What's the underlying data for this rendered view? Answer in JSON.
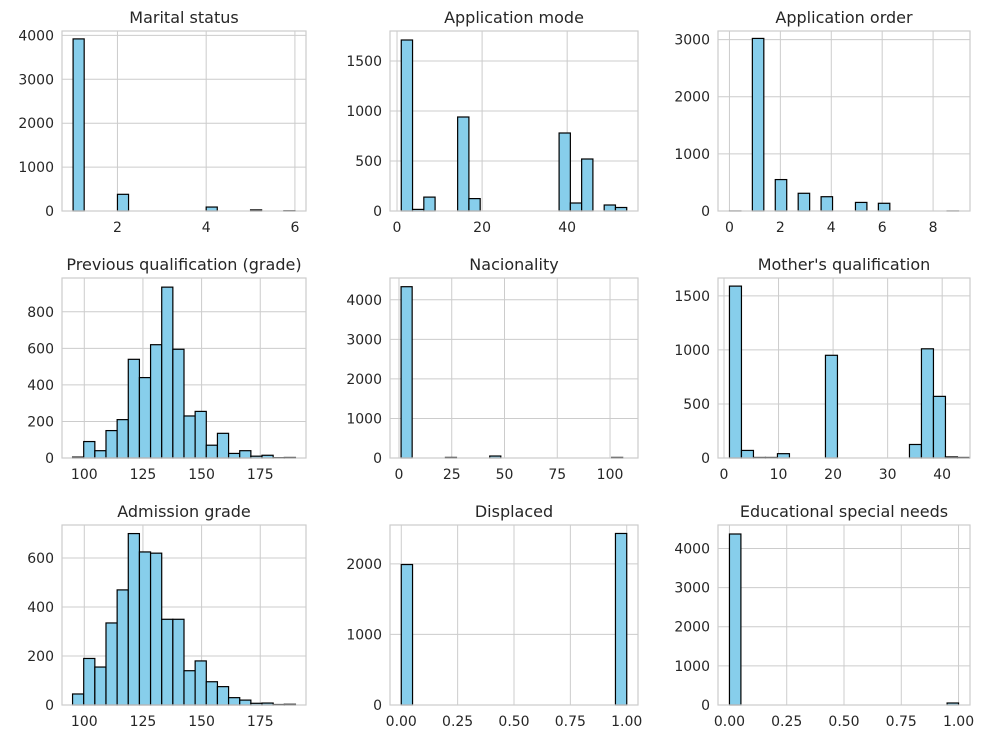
{
  "style": {
    "bar_color": "#87ceeb",
    "edge_color": "#000000",
    "grid_color": "#cccccc",
    "text_color": "#262626"
  },
  "chart_data": [
    {
      "type": "bar",
      "title": "Marital status",
      "grid": true,
      "xlim": [
        0.75,
        6.25
      ],
      "ylim": [
        0,
        4100
      ],
      "xticks": [
        2,
        4,
        6
      ],
      "yticks": [
        0,
        1000,
        2000,
        3000,
        4000
      ],
      "bin_start": 1,
      "bin_width": 0.25,
      "values": [
        3920,
        0,
        0,
        0,
        380,
        0,
        0,
        0,
        0,
        0,
        0,
        0,
        90,
        0,
        0,
        0,
        25,
        0,
        0,
        6
      ]
    },
    {
      "type": "bar",
      "title": "Application mode",
      "grid": true,
      "xlim": [
        -1.65,
        56.65
      ],
      "ylim": [
        0,
        1800
      ],
      "xticks": [
        0,
        20,
        40
      ],
      "yticks": [
        0,
        500,
        1000,
        1500
      ],
      "bin_start": 1,
      "bin_width": 2.65,
      "values": [
        1710,
        16,
        139,
        0,
        0,
        940,
        124,
        0,
        0,
        0,
        0,
        0,
        0,
        0,
        780,
        80,
        520,
        0,
        60,
        35
      ]
    },
    {
      "type": "bar",
      "title": "Application order",
      "grid": true,
      "xlim": [
        -0.45,
        9.45
      ],
      "ylim": [
        0,
        3150
      ],
      "xticks": [
        0,
        2,
        4,
        6,
        8
      ],
      "yticks": [
        0,
        1000,
        2000,
        3000
      ],
      "bin_start": 0,
      "bin_width": 0.45,
      "values": [
        1,
        0,
        3020,
        0,
        550,
        0,
        310,
        0,
        250,
        0,
        0,
        150,
        0,
        135,
        0,
        0,
        0,
        0,
        0,
        1
      ]
    },
    {
      "type": "bar",
      "title": "Previous qualification (grade)",
      "grid": true,
      "xlim": [
        90.5,
        194.5
      ],
      "ylim": [
        0,
        985
      ],
      "xticks": [
        100,
        125,
        150,
        175
      ],
      "yticks": [
        0,
        200,
        400,
        600,
        800
      ],
      "bin_start": 95,
      "bin_width": 4.75,
      "values": [
        5,
        90,
        40,
        150,
        210,
        540,
        440,
        620,
        935,
        595,
        230,
        255,
        70,
        135,
        25,
        40,
        10,
        15,
        2,
        3
      ]
    },
    {
      "type": "bar",
      "title": "Nacionality",
      "grid": true,
      "xlim": [
        -4.25,
        113.25
      ],
      "ylim": [
        0,
        4550
      ],
      "xticks": [
        0,
        25,
        50,
        75,
        100
      ],
      "yticks": [
        0,
        1000,
        2000,
        3000,
        4000
      ],
      "bin_start": 1,
      "bin_width": 5.25,
      "values": [
        4330,
        0,
        0,
        0,
        15,
        0,
        0,
        0,
        50,
        0,
        0,
        0,
        0,
        0,
        0,
        0,
        0,
        0,
        0,
        15
      ]
    },
    {
      "type": "bar",
      "title": "Mother's qualification",
      "grid": true,
      "xlim": [
        -1.1,
        45.1
      ],
      "ylim": [
        0,
        1665
      ],
      "xticks": [
        0,
        10,
        20,
        30,
        40
      ],
      "yticks": [
        0,
        500,
        1000,
        1500
      ],
      "bin_start": 1,
      "bin_width": 2.2,
      "values": [
        1590,
        70,
        5,
        5,
        40,
        0,
        0,
        0,
        950,
        0,
        0,
        0,
        0,
        0,
        0,
        125,
        1010,
        570,
        10,
        5
      ]
    },
    {
      "type": "bar",
      "title": "Admission grade",
      "grid": true,
      "xlim": [
        90.5,
        194.5
      ],
      "ylim": [
        0,
        735
      ],
      "xticks": [
        100,
        125,
        150,
        175
      ],
      "yticks": [
        0,
        200,
        400,
        600
      ],
      "bin_start": 95,
      "bin_width": 4.75,
      "values": [
        45,
        190,
        155,
        335,
        470,
        700,
        625,
        620,
        350,
        350,
        140,
        180,
        95,
        75,
        30,
        20,
        7,
        8,
        2,
        3
      ]
    },
    {
      "type": "bar",
      "title": "Displaced",
      "grid": true,
      "xlim": [
        -0.05,
        1.05
      ],
      "ylim": [
        0,
        2550
      ],
      "xticks": [
        0.0,
        0.25,
        0.5,
        0.75,
        1.0
      ],
      "xtick_labels": [
        "0.00",
        "0.25",
        "0.50",
        "0.75",
        "1.00"
      ],
      "yticks": [
        0,
        1000,
        2000
      ],
      "bin_start": 0,
      "bin_width": 0.05,
      "values": [
        1990,
        0,
        0,
        0,
        0,
        0,
        0,
        0,
        0,
        0,
        0,
        0,
        0,
        0,
        0,
        0,
        0,
        0,
        0,
        2430
      ]
    },
    {
      "type": "bar",
      "title": "Educational special needs",
      "grid": true,
      "xlim": [
        -0.05,
        1.05
      ],
      "ylim": [
        0,
        4600
      ],
      "xticks": [
        0.0,
        0.25,
        0.5,
        0.75,
        1.0
      ],
      "xtick_labels": [
        "0.00",
        "0.25",
        "0.50",
        "0.75",
        "1.00"
      ],
      "yticks": [
        0,
        1000,
        2000,
        3000,
        4000
      ],
      "bin_start": 0,
      "bin_width": 0.05,
      "values": [
        4370,
        0,
        0,
        0,
        0,
        0,
        0,
        0,
        0,
        0,
        0,
        0,
        0,
        0,
        0,
        0,
        0,
        0,
        0,
        51
      ]
    }
  ]
}
